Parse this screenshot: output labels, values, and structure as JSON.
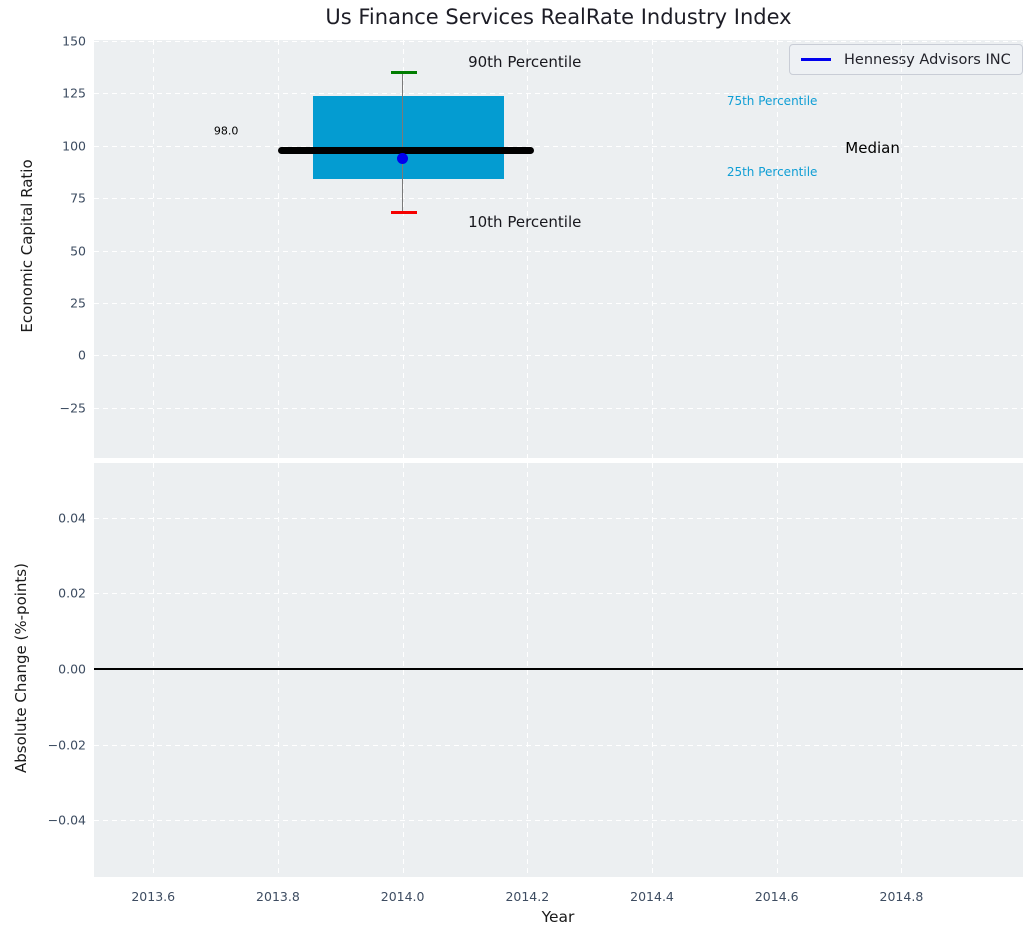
{
  "title": "Us Finance Services RealRate Industry Index",
  "legend": {
    "label": "Hennessy Advisors INC",
    "line_color": "#0000ee"
  },
  "colors": {
    "axes_background": "#eceff1",
    "gridline": "#ffffff",
    "tick_label": "#3d4c61",
    "box_fill": "#049cd1",
    "median_line": "#000000",
    "whisker": "#7a7a7a",
    "cap_90th": "#007d00",
    "cap_10th": "#f50000",
    "company_dot": "#0000ee",
    "percentile_label": "#0f9ed5",
    "zero_line": "#000000"
  },
  "chart_data": [
    {
      "type": "box",
      "subplot": "top",
      "title": "Us Finance Services RealRate Industry Index",
      "ylabel": "Economic Capital Ratio",
      "xlim": [
        2013.505,
        2014.995
      ],
      "ylim": [
        -49,
        150.5
      ],
      "grid": "white dashed on light gray",
      "legend_position": "upper right",
      "xticks": {
        "values": [
          2013.6,
          2013.8,
          2014.0,
          2014.2,
          2014.4,
          2014.6,
          2014.8
        ],
        "labels": [
          "2013.6",
          "2013.8",
          "2014.0",
          "2014.2",
          "2014.4",
          "2014.6",
          "2014.8"
        ]
      },
      "yticks": {
        "values": [
          150,
          125,
          100,
          75,
          50,
          25,
          0,
          -25
        ],
        "labels": [
          "150",
          "125",
          "100",
          "75",
          "50",
          "25",
          "0",
          "−25"
        ]
      },
      "box": {
        "year": 2014,
        "p90": 135,
        "p75": 124,
        "median": 98,
        "company_value": 94,
        "p25": 84,
        "p10": 68,
        "box_left": 2013.857,
        "box_right": 2014.163,
        "median_left": 2013.8,
        "median_right": 2014.21,
        "cap_left": 2013.981,
        "cap_right": 2014.023
      },
      "annotations": [
        {
          "name": "median-value-label",
          "text": "98.0",
          "x": 2013.717,
          "y": 107,
          "dy": 0,
          "size": 11,
          "color": "#000000",
          "align": "center"
        },
        {
          "name": "label-90th-percentile",
          "text": "90th Percentile",
          "x": 2014.105,
          "y": 135,
          "dy": -10,
          "size": 15,
          "color": "#17171d",
          "align": "left"
        },
        {
          "name": "label-10th-percentile",
          "text": "10th Percentile",
          "x": 2014.105,
          "y": 68,
          "dy": 9,
          "size": 15,
          "color": "#17171d",
          "align": "left"
        },
        {
          "name": "label-75th-percentile",
          "text": "75th Percentile",
          "x": 2014.52,
          "y": 124,
          "dy": 5,
          "size": 12,
          "color": "#0f9ed5",
          "align": "left"
        },
        {
          "name": "label-25th-percentile",
          "text": "25th Percentile",
          "x": 2014.52,
          "y": 84,
          "dy": -7,
          "size": 12,
          "color": "#0f9ed5",
          "align": "left"
        },
        {
          "name": "label-median",
          "text": "Median",
          "x": 2014.71,
          "y": 98,
          "dy": -2,
          "size": 15,
          "color": "#000000",
          "align": "left"
        }
      ]
    },
    {
      "type": "line",
      "subplot": "bottom",
      "xlabel": "Year",
      "ylabel": "Absolute Change (%-points)",
      "xlim": [
        2013.505,
        2014.995
      ],
      "ylim": [
        -0.055,
        0.0545
      ],
      "zero_line": 0.0,
      "xticks": {
        "values": [
          2013.6,
          2013.8,
          2014.0,
          2014.2,
          2014.4,
          2014.6,
          2014.8
        ],
        "labels": [
          "2013.6",
          "2013.8",
          "2014.0",
          "2014.2",
          "2014.4",
          "2014.6",
          "2014.8"
        ]
      },
      "yticks": {
        "values": [
          0.04,
          0.02,
          0,
          -0.02,
          -0.04
        ],
        "labels": [
          "0.04",
          "0.02",
          "0.00",
          "−0.02",
          "−0.04"
        ]
      }
    }
  ]
}
